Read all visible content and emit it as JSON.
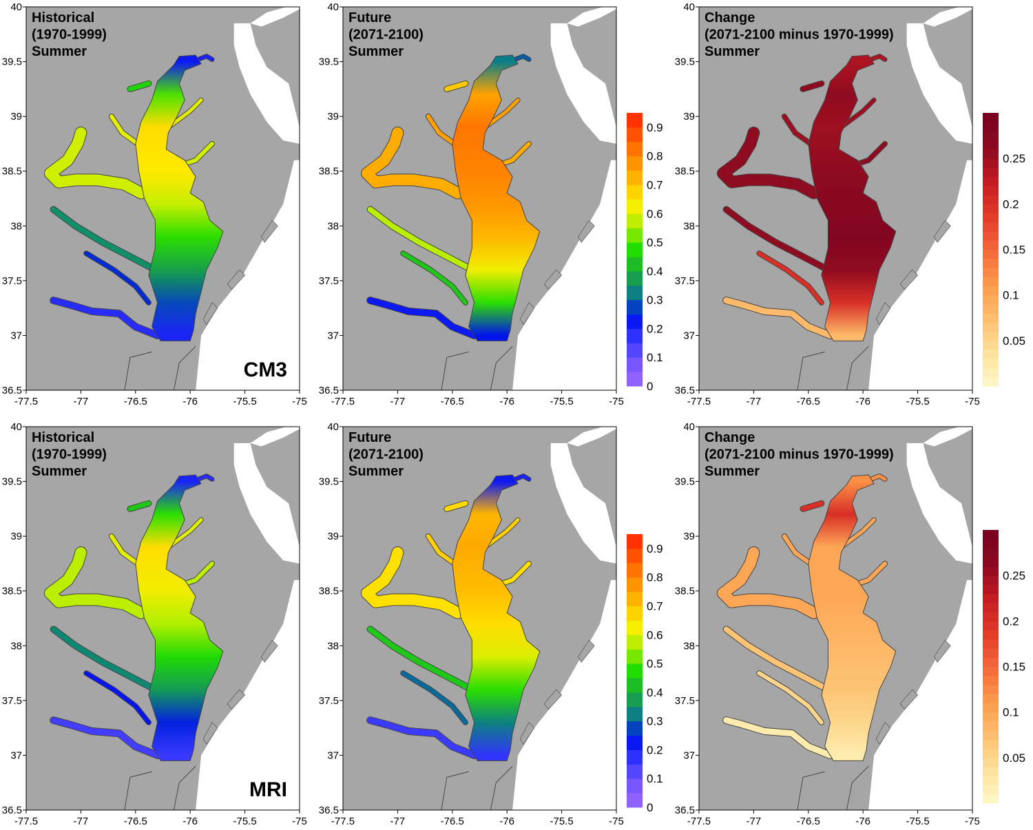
{
  "colors": {
    "land": "#a6a6a6",
    "water": "#ffffff",
    "panel_border": "#000000",
    "shoreline": "#444444"
  },
  "x_ticks": [
    "-77.5",
    "-77",
    "-76.5",
    "-76",
    "-75.5",
    "-75"
  ],
  "y_ticks": [
    "36.5",
    "37",
    "37.5",
    "38",
    "38.5",
    "39",
    "39.5",
    "40"
  ],
  "x_range": [
    -77.5,
    -75
  ],
  "y_range": [
    36.5,
    40
  ],
  "scales": {
    "absolute": {
      "ticks": [
        "0",
        "0.1",
        "0.2",
        "0.3",
        "0.4",
        "0.5",
        "0.6",
        "0.7",
        "0.8",
        "0.9"
      ],
      "range": [
        0,
        0.95
      ],
      "stops": [
        "#9a66ff",
        "#7755ff",
        "#3a3aff",
        "#0010ee",
        "#0a7a8c",
        "#1aaa3a",
        "#22dd00",
        "#aaee00",
        "#ffee00",
        "#ffbb00",
        "#ff8800",
        "#ff5500",
        "#ff2200"
      ]
    },
    "change": {
      "ticks": [
        "0.05",
        "0.1",
        "0.15",
        "0.2",
        "0.25"
      ],
      "range": [
        0,
        0.3
      ],
      "stops": [
        "#fff8c8",
        "#fde19a",
        "#fdbf6f",
        "#fd9a4a",
        "#f5663a",
        "#e23a28",
        "#c41a22",
        "#8b0a20",
        "#780020"
      ]
    }
  },
  "rows": [
    {
      "model": "CM3",
      "panels": [
        {
          "title": [
            "Historical",
            "(1970-1999)",
            "Summer"
          ],
          "scale": "absolute",
          "field": [
            {
              "lat": 39.5,
              "v": 0.22
            },
            {
              "lat": 39.2,
              "v": 0.5
            },
            {
              "lat": 38.9,
              "v": 0.66
            },
            {
              "lat": 38.5,
              "v": 0.64
            },
            {
              "lat": 38.2,
              "v": 0.58
            },
            {
              "lat": 37.9,
              "v": 0.48
            },
            {
              "lat": 37.6,
              "v": 0.38
            },
            {
              "lat": 37.3,
              "v": 0.28
            },
            {
              "lat": 37.0,
              "v": 0.2
            }
          ]
        },
        {
          "title": [
            "Future",
            "(2071-2100)",
            "Summer"
          ],
          "scale": "absolute",
          "field": [
            {
              "lat": 39.5,
              "v": 0.32
            },
            {
              "lat": 39.2,
              "v": 0.75
            },
            {
              "lat": 38.9,
              "v": 0.82
            },
            {
              "lat": 38.5,
              "v": 0.8
            },
            {
              "lat": 38.2,
              "v": 0.77
            },
            {
              "lat": 37.9,
              "v": 0.72
            },
            {
              "lat": 37.6,
              "v": 0.62
            },
            {
              "lat": 37.3,
              "v": 0.48
            },
            {
              "lat": 37.0,
              "v": 0.24
            }
          ]
        },
        {
          "title": [
            "Change",
            "(2071-2100 minus 1970-1999)",
            "Summer"
          ],
          "scale": "change",
          "field": [
            {
              "lat": 39.5,
              "v": 0.24
            },
            {
              "lat": 39.2,
              "v": 0.26
            },
            {
              "lat": 38.9,
              "v": 0.25
            },
            {
              "lat": 38.5,
              "v": 0.26
            },
            {
              "lat": 38.2,
              "v": 0.27
            },
            {
              "lat": 37.9,
              "v": 0.28
            },
            {
              "lat": 37.6,
              "v": 0.26
            },
            {
              "lat": 37.3,
              "v": 0.2
            },
            {
              "lat": 37.0,
              "v": 0.08
            }
          ]
        }
      ]
    },
    {
      "model": "MRI",
      "panels": [
        {
          "title": [
            "Historical",
            "(1970-1999)",
            "Summer"
          ],
          "scale": "absolute",
          "field": [
            {
              "lat": 39.5,
              "v": 0.2
            },
            {
              "lat": 39.2,
              "v": 0.48
            },
            {
              "lat": 38.9,
              "v": 0.66
            },
            {
              "lat": 38.5,
              "v": 0.62
            },
            {
              "lat": 38.2,
              "v": 0.56
            },
            {
              "lat": 37.9,
              "v": 0.47
            },
            {
              "lat": 37.6,
              "v": 0.37
            },
            {
              "lat": 37.3,
              "v": 0.25
            },
            {
              "lat": 37.0,
              "v": 0.16
            }
          ]
        },
        {
          "title": [
            "Future",
            "(2071-2100)",
            "Summer"
          ],
          "scale": "absolute",
          "field": [
            {
              "lat": 39.5,
              "v": 0.22
            },
            {
              "lat": 39.2,
              "v": 0.72
            },
            {
              "lat": 38.9,
              "v": 0.74
            },
            {
              "lat": 38.5,
              "v": 0.71
            },
            {
              "lat": 38.2,
              "v": 0.66
            },
            {
              "lat": 37.9,
              "v": 0.6
            },
            {
              "lat": 37.6,
              "v": 0.48
            },
            {
              "lat": 37.3,
              "v": 0.33
            },
            {
              "lat": 37.0,
              "v": 0.17
            }
          ]
        },
        {
          "title": [
            "Change",
            "(2071-2100 minus 1970-1999)",
            "Summer"
          ],
          "scale": "change",
          "field": [
            {
              "lat": 39.5,
              "v": 0.12
            },
            {
              "lat": 39.2,
              "v": 0.2
            },
            {
              "lat": 38.9,
              "v": 0.1
            },
            {
              "lat": 38.5,
              "v": 0.1
            },
            {
              "lat": 38.2,
              "v": 0.09
            },
            {
              "lat": 37.9,
              "v": 0.08
            },
            {
              "lat": 37.6,
              "v": 0.07
            },
            {
              "lat": 37.3,
              "v": 0.05
            },
            {
              "lat": 37.0,
              "v": 0.02
            }
          ]
        }
      ]
    }
  ]
}
